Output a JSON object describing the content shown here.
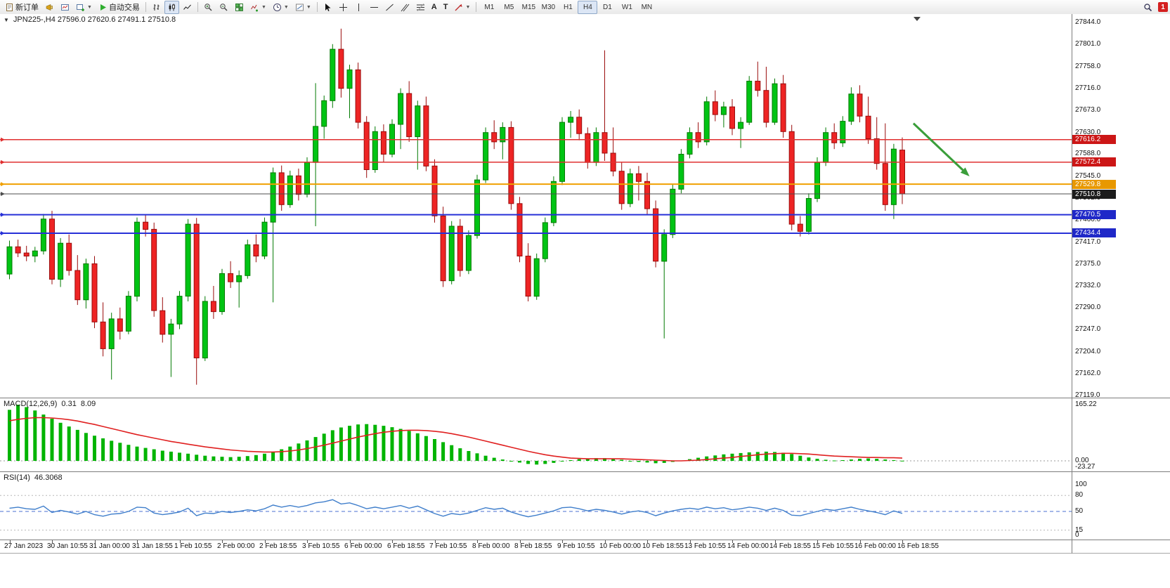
{
  "window": {
    "badge_count": "1"
  },
  "toolbar": {
    "new_order_label": "新订单",
    "auto_trading_label": "自动交易",
    "timeframes": [
      "M1",
      "M5",
      "M15",
      "M30",
      "H1",
      "H4",
      "D1",
      "W1",
      "MN"
    ],
    "active_timeframe": "H4",
    "icons": [
      "new-order",
      "horn",
      "chart-window",
      "new-chart",
      "auto-trading-play",
      "ohlc-bars",
      "candlesticks",
      "line-chart",
      "zoom-in",
      "zoom-out",
      "tile-windows",
      "indicators",
      "periods",
      "templates",
      "cursor",
      "crosshair",
      "vertical-line",
      "horizontal-line",
      "trendline",
      "channel",
      "fibonacci",
      "text",
      "text-label",
      "arrows",
      "search",
      "notification"
    ]
  },
  "chart": {
    "symbol_info": "JPN225-,H4 27596.0 27620.6 27491.1 27510.8"
  },
  "chart_data": {
    "type": "candlestick",
    "symbol": "JPN225-",
    "timeframe": "H4",
    "ohlc_display": {
      "open": "27596.0",
      "high": "27620.6",
      "low": "27491.1",
      "close": "27510.8"
    },
    "colors": {
      "up": "#00c414",
      "up_stroke": "#027a02",
      "down": "#ee2424",
      "down_stroke": "#9a0c0c",
      "background": "#ffffff"
    },
    "price_axis": {
      "min": 27119,
      "max": 27844,
      "ticks": [
        27844,
        27801,
        27758,
        27716,
        27673,
        27630,
        27588,
        27545,
        27502,
        27460,
        27417,
        27375,
        27332,
        27290,
        27247,
        27204,
        27162,
        27119
      ]
    },
    "time_labels": [
      {
        "bar": 0,
        "label": "27 Jan 2023"
      },
      {
        "bar": 5,
        "label": "30 Jan 10:55"
      },
      {
        "bar": 10,
        "label": "31 Jan 00:00"
      },
      {
        "bar": 15,
        "label": "31 Jan 18:55"
      },
      {
        "bar": 20,
        "label": "1 Feb 10:55"
      },
      {
        "bar": 25,
        "label": "2 Feb 00:00"
      },
      {
        "bar": 30,
        "label": "2 Feb 18:55"
      },
      {
        "bar": 35,
        "label": "3 Feb 10:55"
      },
      {
        "bar": 40,
        "label": "6 Feb 00:00"
      },
      {
        "bar": 45,
        "label": "6 Feb 18:55"
      },
      {
        "bar": 50,
        "label": "7 Feb 10:55"
      },
      {
        "bar": 55,
        "label": "8 Feb 00:00"
      },
      {
        "bar": 60,
        "label": "8 Feb 18:55"
      },
      {
        "bar": 65,
        "label": "9 Feb 10:55"
      },
      {
        "bar": 70,
        "label": "10 Feb 00:00"
      },
      {
        "bar": 75,
        "label": "10 Feb 18:55"
      },
      {
        "bar": 80,
        "label": "13 Feb 10:55"
      },
      {
        "bar": 85,
        "label": "14 Feb 00:00"
      },
      {
        "bar": 90,
        "label": "14 Feb 18:55"
      },
      {
        "bar": 95,
        "label": "15 Feb 10:55"
      },
      {
        "bar": 100,
        "label": "16 Feb 00:00"
      },
      {
        "bar": 105,
        "label": "16 Feb 18:55"
      }
    ],
    "candles": [
      [
        27355,
        27420,
        27345,
        27408
      ],
      [
        27408,
        27422,
        27388,
        27396
      ],
      [
        27396,
        27410,
        27380,
        27390
      ],
      [
        27390,
        27408,
        27378,
        27400
      ],
      [
        27400,
        27472,
        27393,
        27462
      ],
      [
        27462,
        27478,
        27335,
        27345
      ],
      [
        27345,
        27425,
        27330,
        27415
      ],
      [
        27415,
        27432,
        27352,
        27362
      ],
      [
        27362,
        27392,
        27295,
        27305
      ],
      [
        27305,
        27385,
        27288,
        27375
      ],
      [
        27375,
        27390,
        27250,
        27262
      ],
      [
        27262,
        27300,
        27195,
        27210
      ],
      [
        27210,
        27280,
        27150,
        27268
      ],
      [
        27268,
        27290,
        27228,
        27244
      ],
      [
        27244,
        27322,
        27238,
        27312
      ],
      [
        27312,
        27465,
        27302,
        27456
      ],
      [
        27456,
        27470,
        27428,
        27442
      ],
      [
        27442,
        27455,
        27272,
        27284
      ],
      [
        27284,
        27310,
        27222,
        27238
      ],
      [
        27238,
        27268,
        27155,
        27258
      ],
      [
        27258,
        27322,
        27248,
        27312
      ],
      [
        27312,
        27462,
        27302,
        27452
      ],
      [
        27452,
        27464,
        27140,
        27192
      ],
      [
        27192,
        27312,
        27186,
        27302
      ],
      [
        27302,
        27332,
        27268,
        27282
      ],
      [
        27282,
        27365,
        27276,
        27356
      ],
      [
        27356,
        27380,
        27328,
        27340
      ],
      [
        27340,
        27362,
        27290,
        27352
      ],
      [
        27352,
        27422,
        27346,
        27412
      ],
      [
        27412,
        27432,
        27378,
        27390
      ],
      [
        27390,
        27465,
        27384,
        27456
      ],
      [
        27456,
        27562,
        27300,
        27552
      ],
      [
        27552,
        27566,
        27478,
        27490
      ],
      [
        27490,
        27556,
        27484,
        27546
      ],
      [
        27546,
        27560,
        27498,
        27510
      ],
      [
        27510,
        27582,
        27504,
        27572
      ],
      [
        27572,
        27726,
        27448,
        27642
      ],
      [
        27642,
        27702,
        27618,
        27692
      ],
      [
        27692,
        27802,
        27678,
        27792
      ],
      [
        27792,
        27832,
        27698,
        27716
      ],
      [
        27716,
        27762,
        27658,
        27752
      ],
      [
        27752,
        27766,
        27638,
        27650
      ],
      [
        27650,
        27662,
        27542,
        27558
      ],
      [
        27558,
        27642,
        27552,
        27632
      ],
      [
        27632,
        27646,
        27572,
        27588
      ],
      [
        27588,
        27656,
        27582,
        27646
      ],
      [
        27646,
        27716,
        27598,
        27706
      ],
      [
        27706,
        27730,
        27612,
        27622
      ],
      [
        27622,
        27692,
        27558,
        27682
      ],
      [
        27682,
        27700,
        27555,
        27565
      ],
      [
        27565,
        27578,
        27455,
        27468
      ],
      [
        27468,
        27486,
        27330,
        27342
      ],
      [
        27342,
        27458,
        27335,
        27448
      ],
      [
        27448,
        27462,
        27350,
        27362
      ],
      [
        27362,
        27440,
        27355,
        27430
      ],
      [
        27430,
        27548,
        27424,
        27538
      ],
      [
        27538,
        27640,
        27532,
        27630
      ],
      [
        27630,
        27654,
        27598,
        27612
      ],
      [
        27612,
        27650,
        27578,
        27640
      ],
      [
        27640,
        27652,
        27480,
        27492
      ],
      [
        27492,
        27505,
        27378,
        27390
      ],
      [
        27390,
        27415,
        27302,
        27312
      ],
      [
        27312,
        27395,
        27305,
        27385
      ],
      [
        27385,
        27465,
        27378,
        27455
      ],
      [
        27455,
        27545,
        27448,
        27535
      ],
      [
        27535,
        27660,
        27528,
        27650
      ],
      [
        27650,
        27672,
        27620,
        27660
      ],
      [
        27660,
        27675,
        27615,
        27628
      ],
      [
        27628,
        27640,
        27560,
        27572
      ],
      [
        27572,
        27640,
        27565,
        27630
      ],
      [
        27630,
        27790,
        27575,
        27590
      ],
      [
        27590,
        27640,
        27545,
        27555
      ],
      [
        27555,
        27572,
        27480,
        27492
      ],
      [
        27492,
        27560,
        27485,
        27550
      ],
      [
        27550,
        27565,
        27498,
        27535
      ],
      [
        27535,
        27552,
        27470,
        27482
      ],
      [
        27482,
        27498,
        27368,
        27380
      ],
      [
        27380,
        27442,
        27230,
        27432
      ],
      [
        27432,
        27530,
        27425,
        27520
      ],
      [
        27520,
        27598,
        27512,
        27588
      ],
      [
        27588,
        27640,
        27580,
        27630
      ],
      [
        27630,
        27650,
        27600,
        27612
      ],
      [
        27612,
        27700,
        27605,
        27690
      ],
      [
        27690,
        27712,
        27652,
        27665
      ],
      [
        27665,
        27690,
        27640,
        27680
      ],
      [
        27680,
        27695,
        27625,
        27638
      ],
      [
        27638,
        27660,
        27600,
        27650
      ],
      [
        27650,
        27740,
        27645,
        27730
      ],
      [
        27730,
        27768,
        27700,
        27712
      ],
      [
        27712,
        27758,
        27640,
        27650
      ],
      [
        27650,
        27735,
        27645,
        27725
      ],
      [
        27725,
        27742,
        27620,
        27632
      ],
      [
        27632,
        27645,
        27440,
        27452
      ],
      [
        27452,
        27468,
        27428,
        27438
      ],
      [
        27438,
        27512,
        27432,
        27502
      ],
      [
        27502,
        27582,
        27495,
        27572
      ],
      [
        27572,
        27640,
        27565,
        27630
      ],
      [
        27630,
        27648,
        27598,
        27610
      ],
      [
        27610,
        27662,
        27602,
        27652
      ],
      [
        27652,
        27718,
        27645,
        27705
      ],
      [
        27705,
        27722,
        27650,
        27662
      ],
      [
        27662,
        27700,
        27608,
        27618
      ],
      [
        27618,
        27660,
        27558,
        27570
      ],
      [
        27570,
        27648,
        27478,
        27490
      ],
      [
        27490,
        27608,
        27462,
        27598
      ],
      [
        27596,
        27620.6,
        27491.1,
        27510.8
      ]
    ],
    "hlines": [
      {
        "value": 27616.2,
        "label": "27616.2",
        "color": "#e03030",
        "tag": "#cc1616",
        "width": 1.5
      },
      {
        "value": 27572.4,
        "label": "27572.4",
        "color": "#e03030",
        "tag": "#cc1616",
        "width": 1.5
      },
      {
        "value": 27529.8,
        "label": "27529.8",
        "color": "#f0a000",
        "tag": "#e89800",
        "width": 2
      },
      {
        "value": 27510.8,
        "label": "27510.8",
        "color": "#4d4d4d",
        "tag": "#1c1c1c",
        "width": 1
      },
      {
        "value": 27470.5,
        "label": "27470.5",
        "color": "#2730d8",
        "tag": "#1f28c8",
        "width": 2
      },
      {
        "value": 27434.4,
        "label": "27434.4",
        "color": "#2730d8",
        "tag": "#1f28c8",
        "width": 2
      }
    ],
    "arrow": {
      "from_bar": 106.6,
      "from_price": 27648,
      "to_bar": 113.2,
      "to_price": 27545,
      "color": "#3a9e3a"
    },
    "macd": {
      "label": "MACD(12,26,9)",
      "value_main": "0.31",
      "value_signal": "8.09",
      "scale_max": "165.22",
      "scale_zero": "0.00",
      "scale_min": "-23.27",
      "hist_color": "#00b400",
      "signal_color": "#e02020",
      "histogram": [
        150,
        165,
        158,
        148,
        136,
        124,
        112,
        101,
        91,
        82,
        74,
        66,
        59,
        53,
        47,
        42,
        38,
        34,
        30,
        27,
        24,
        21,
        18,
        15,
        13,
        12,
        11,
        12,
        14,
        17,
        21,
        27,
        34,
        42,
        51,
        60,
        70,
        80,
        90,
        98,
        103,
        107,
        108,
        106,
        103,
        99,
        94,
        88,
        81,
        73,
        64,
        55,
        46,
        37,
        29,
        22,
        15,
        9,
        4,
        -1,
        -5,
        -9,
        -11,
        -9,
        -6,
        -2,
        2,
        5,
        7,
        8,
        8,
        6,
        3,
        0,
        -3,
        -5,
        -7,
        -6,
        -3,
        1,
        5,
        9,
        13,
        16,
        19,
        21,
        23,
        25,
        26,
        27,
        26,
        24,
        20,
        15,
        10,
        6,
        3,
        1,
        2,
        4,
        6,
        7,
        6,
        4,
        2,
        0.31
      ],
      "signal": [
        118,
        122,
        125,
        127,
        127,
        126,
        124,
        121,
        117,
        112,
        107,
        101,
        95,
        89,
        83,
        77,
        72,
        67,
        62,
        57,
        53,
        49,
        45,
        41,
        38,
        35,
        32,
        30,
        28,
        27,
        26,
        26,
        27,
        29,
        32,
        36,
        41,
        46,
        52,
        58,
        64,
        70,
        75,
        80,
        84,
        87,
        89,
        90,
        90,
        89,
        87,
        84,
        80,
        75,
        70,
        64,
        58,
        52,
        46,
        40,
        34,
        28,
        23,
        18,
        14,
        11,
        8,
        7,
        6,
        6,
        6,
        6,
        6,
        5,
        4,
        3,
        2,
        1,
        0,
        0,
        1,
        2,
        4,
        6,
        8,
        10,
        13,
        15,
        18,
        20,
        21,
        22,
        22,
        21,
        20,
        18,
        16,
        14,
        13,
        12,
        11,
        10,
        10,
        9,
        9,
        8.09
      ]
    },
    "rsi": {
      "label": "RSI(14)",
      "value": "46.3068",
      "color": "#3f7ecb",
      "levels": [
        {
          "v": 100,
          "label": "100",
          "line": false
        },
        {
          "v": 80,
          "label": "80",
          "line": true
        },
        {
          "v": 50,
          "label": "50",
          "line": true
        },
        {
          "v": 15,
          "label": "15",
          "line": true
        },
        {
          "v": 0,
          "label": "0",
          "line": false
        }
      ],
      "values": [
        56,
        58,
        55,
        54,
        60,
        48,
        52,
        49,
        45,
        50,
        44,
        41,
        45,
        46,
        50,
        58,
        57,
        47,
        44,
        46,
        49,
        56,
        42,
        47,
        46,
        50,
        48,
        50,
        53,
        51,
        55,
        62,
        58,
        61,
        58,
        61,
        66,
        68,
        72,
        64,
        66,
        61,
        55,
        58,
        55,
        58,
        61,
        56,
        60,
        53,
        46,
        41,
        46,
        44,
        47,
        52,
        57,
        54,
        56,
        49,
        44,
        40,
        43,
        47,
        51,
        57,
        58,
        55,
        51,
        54,
        52,
        49,
        45,
        49,
        51,
        48,
        42,
        47,
        51,
        54,
        56,
        54,
        58,
        55,
        57,
        53,
        55,
        58,
        56,
        52,
        56,
        52,
        43,
        42,
        46,
        50,
        54,
        52,
        55,
        58,
        54,
        51,
        48,
        44,
        51,
        46.3068
      ]
    }
  }
}
